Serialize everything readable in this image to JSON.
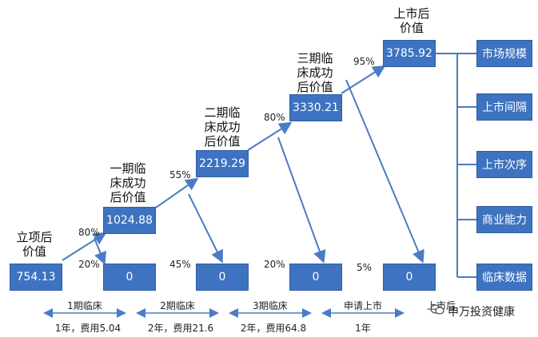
{
  "stages": [
    {
      "label": "立项后价值",
      "value": "754.13"
    },
    {
      "label": "一期临床成功后价值",
      "value": "1024.88"
    },
    {
      "label": "二期临床成功后价值",
      "value": "2219.29"
    },
    {
      "label": "三期临床成功后价值",
      "value": "3330.21"
    },
    {
      "label": "上市后价值",
      "value": "3785.92"
    }
  ],
  "fail_values": [
    "0",
    "0",
    "0",
    "0"
  ],
  "success_pct": [
    "80%",
    "55%",
    "80%",
    "95%"
  ],
  "fail_pct": [
    "20%",
    "45%",
    "20%",
    "5%"
  ],
  "factors": [
    "市场规模",
    "上市间隔",
    "上市次序",
    "商业能力",
    "临床数据"
  ],
  "phases": [
    {
      "name": "1期临床",
      "cost": "1年，费用5.04"
    },
    {
      "name": "2期临床",
      "cost": "2年，费用21.6"
    },
    {
      "name": "3期临床",
      "cost": "2年，费用64.8"
    },
    {
      "name": "申请上市",
      "cost": "1年"
    },
    {
      "name": "上市后",
      "cost": ""
    }
  ],
  "watermark": "申万投资健康",
  "colors": {
    "box": "#3d73c0",
    "arrow": "#4a7bc4"
  }
}
